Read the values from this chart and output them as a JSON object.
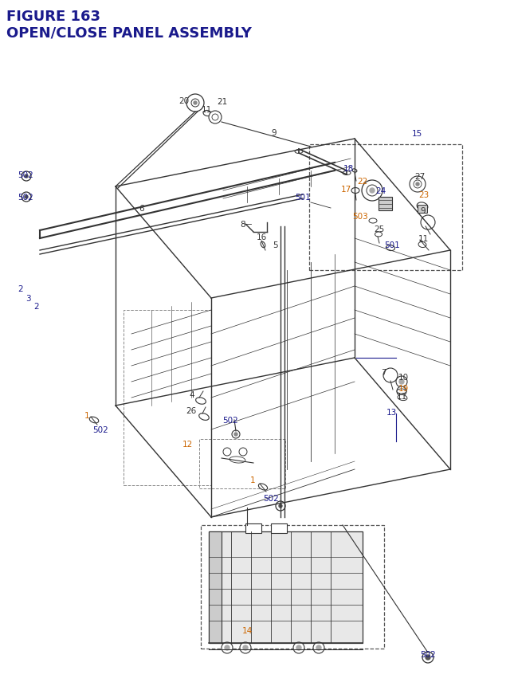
{
  "title_line1": "FIGURE 163",
  "title_line2": "OPEN/CLOSE PANEL ASSEMBLY",
  "title_color": "#1a1a8c",
  "title_fontsize": 13,
  "bg_color": "#ffffff",
  "line_color": "#333333",
  "label_data": [
    [
      237,
      127,
      "20",
      "#333333",
      "right"
    ],
    [
      253,
      138,
      "11",
      "#333333",
      "left"
    ],
    [
      272,
      128,
      "21",
      "#333333",
      "left"
    ],
    [
      22,
      220,
      "502",
      "#1a1a8c",
      "left"
    ],
    [
      22,
      248,
      "502",
      "#1a1a8c",
      "left"
    ],
    [
      22,
      363,
      "2",
      "#1a1a8c",
      "left"
    ],
    [
      32,
      375,
      "3",
      "#1a1a8c",
      "left"
    ],
    [
      42,
      385,
      "2",
      "#1a1a8c",
      "left"
    ],
    [
      178,
      262,
      "6",
      "#333333",
      "center"
    ],
    [
      308,
      282,
      "8",
      "#333333",
      "right"
    ],
    [
      322,
      298,
      "16",
      "#333333",
      "left"
    ],
    [
      342,
      308,
      "5",
      "#333333",
      "left"
    ],
    [
      344,
      167,
      "9",
      "#333333",
      "center"
    ],
    [
      390,
      248,
      "501",
      "#1a1a8c",
      "right"
    ],
    [
      444,
      212,
      "18",
      "#1a1a8c",
      "right"
    ],
    [
      441,
      238,
      "17",
      "#cc6600",
      "right"
    ],
    [
      462,
      228,
      "22",
      "#cc6600",
      "right"
    ],
    [
      471,
      240,
      "24",
      "#1a1a8c",
      "left"
    ],
    [
      462,
      272,
      "503",
      "#cc6600",
      "right"
    ],
    [
      469,
      288,
      "25",
      "#333333",
      "left"
    ],
    [
      482,
      308,
      "501",
      "#1a1a8c",
      "left"
    ],
    [
      520,
      222,
      "27",
      "#333333",
      "left"
    ],
    [
      525,
      245,
      "23",
      "#cc6600",
      "left"
    ],
    [
      530,
      168,
      "15",
      "#1a1a8c",
      "right"
    ],
    [
      527,
      265,
      "9",
      "#333333",
      "left"
    ],
    [
      525,
      300,
      "11",
      "#333333",
      "left"
    ],
    [
      244,
      496,
      "4",
      "#333333",
      "right"
    ],
    [
      246,
      516,
      "26",
      "#333333",
      "right"
    ],
    [
      289,
      528,
      "502",
      "#1a1a8c",
      "center"
    ],
    [
      112,
      522,
      "1",
      "#cc6600",
      "right"
    ],
    [
      126,
      540,
      "502",
      "#1a1a8c",
      "center"
    ],
    [
      242,
      558,
      "12",
      "#cc6600",
      "right"
    ],
    [
      485,
      468,
      "7",
      "#333333",
      "right"
    ],
    [
      500,
      474,
      "10",
      "#333333",
      "left"
    ],
    [
      500,
      488,
      "19",
      "#cc6600",
      "left"
    ],
    [
      498,
      498,
      "11",
      "#333333",
      "left"
    ],
    [
      485,
      518,
      "13",
      "#1a1a8c",
      "left"
    ],
    [
      320,
      603,
      "1",
      "#cc6600",
      "right"
    ],
    [
      340,
      626,
      "502",
      "#1a1a8c",
      "center"
    ],
    [
      310,
      792,
      "14",
      "#cc6600",
      "center"
    ],
    [
      527,
      822,
      "502",
      "#1a1a8c",
      "left"
    ]
  ]
}
